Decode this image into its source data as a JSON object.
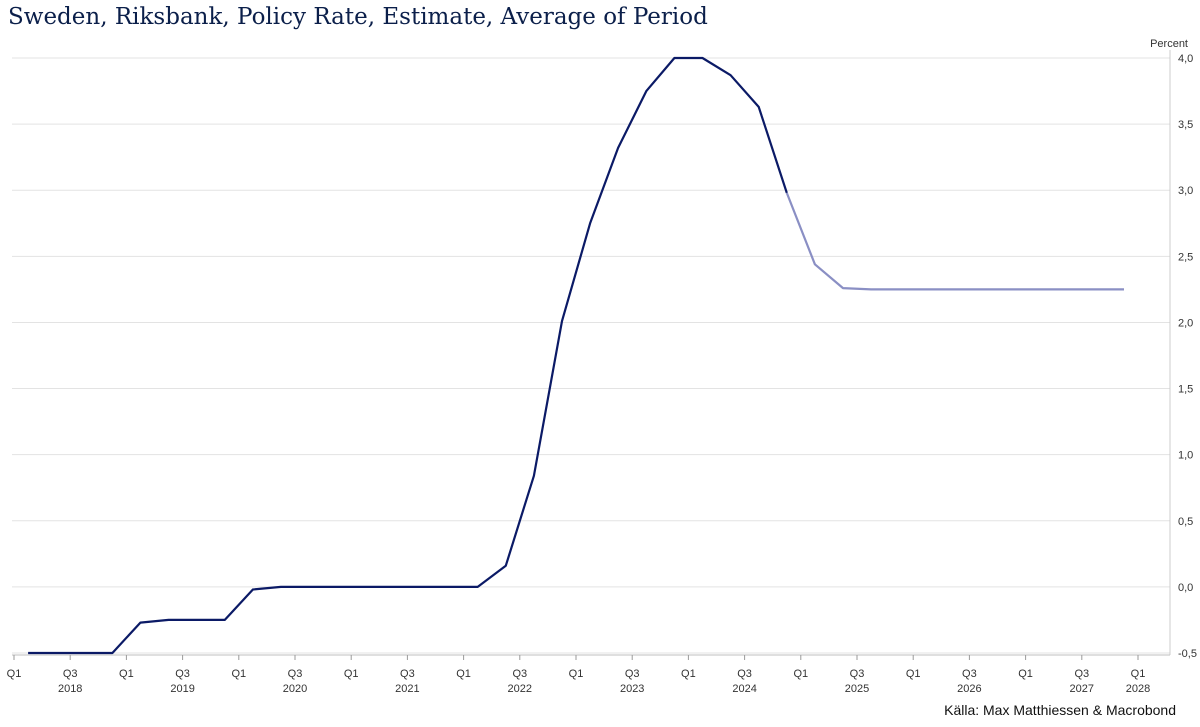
{
  "chart_data": {
    "type": "line",
    "title": "Sweden, Riksbank, Policy Rate, Estimate, Average of Period",
    "ylabel": "Percent",
    "ylim": [
      -0.5,
      4.0
    ],
    "y_ticks": [
      "4,0",
      "3,5",
      "3,0",
      "2,5",
      "2,0",
      "1,5",
      "1,0",
      "0,5",
      "0,0",
      "-0,5"
    ],
    "y_tick_values": [
      4.0,
      3.5,
      3.0,
      2.5,
      2.0,
      1.5,
      1.0,
      0.5,
      0.0,
      -0.5
    ],
    "x_ticks": [
      {
        "q": "Q1",
        "year": ""
      },
      {
        "q": "Q3",
        "year": "2018"
      },
      {
        "q": "Q1",
        "year": ""
      },
      {
        "q": "Q3",
        "year": "2019"
      },
      {
        "q": "Q1",
        "year": ""
      },
      {
        "q": "Q3",
        "year": "2020"
      },
      {
        "q": "Q1",
        "year": ""
      },
      {
        "q": "Q3",
        "year": "2021"
      },
      {
        "q": "Q1",
        "year": ""
      },
      {
        "q": "Q3",
        "year": "2022"
      },
      {
        "q": "Q1",
        "year": ""
      },
      {
        "q": "Q3",
        "year": "2023"
      },
      {
        "q": "Q1",
        "year": ""
      },
      {
        "q": "Q3",
        "year": "2024"
      },
      {
        "q": "Q1",
        "year": ""
      },
      {
        "q": "Q3",
        "year": "2025"
      },
      {
        "q": "Q1",
        "year": ""
      },
      {
        "q": "Q3",
        "year": "2026"
      },
      {
        "q": "Q1",
        "year": ""
      },
      {
        "q": "Q3",
        "year": "2027"
      },
      {
        "q": "Q1",
        "year": "2028"
      }
    ],
    "grid": true,
    "legend": "none",
    "series": [
      {
        "kind": "actual",
        "color": "#0b1a66",
        "x": [
          "2018 Q1",
          "2018 Q2",
          "2018 Q3",
          "2018 Q4",
          "2019 Q1",
          "2019 Q2",
          "2019 Q3",
          "2019 Q4",
          "2020 Q1",
          "2020 Q2",
          "2020 Q3",
          "2020 Q4",
          "2021 Q1",
          "2021 Q2",
          "2021 Q3",
          "2021 Q4",
          "2022 Q1",
          "2022 Q2",
          "2022 Q3",
          "2022 Q4",
          "2023 Q1",
          "2023 Q2",
          "2023 Q3",
          "2023 Q4",
          "2024 Q1",
          "2024 Q2",
          "2024 Q3",
          "2024 Q4"
        ],
        "values": [
          -0.5,
          -0.5,
          -0.5,
          -0.5,
          -0.27,
          -0.25,
          -0.25,
          -0.25,
          -0.02,
          0.0,
          0.0,
          0.0,
          0.0,
          0.0,
          0.0,
          0.0,
          0.0,
          0.16,
          0.84,
          2.01,
          2.75,
          3.32,
          3.75,
          4.0,
          4.0,
          3.87,
          3.63,
          2.98
        ]
      },
      {
        "kind": "forecast",
        "color": "#8a8fc4",
        "x": [
          "2024 Q4",
          "2025 Q1",
          "2025 Q2",
          "2025 Q3",
          "2025 Q4",
          "2026 Q1",
          "2026 Q2",
          "2026 Q3",
          "2026 Q4",
          "2027 Q1",
          "2027 Q2",
          "2027 Q3",
          "2027 Q4"
        ],
        "values": [
          2.98,
          2.44,
          2.26,
          2.25,
          2.25,
          2.25,
          2.25,
          2.25,
          2.25,
          2.25,
          2.25,
          2.25,
          2.25
        ]
      }
    ]
  },
  "source": "Källa: Max Matthiessen & Macrobond"
}
